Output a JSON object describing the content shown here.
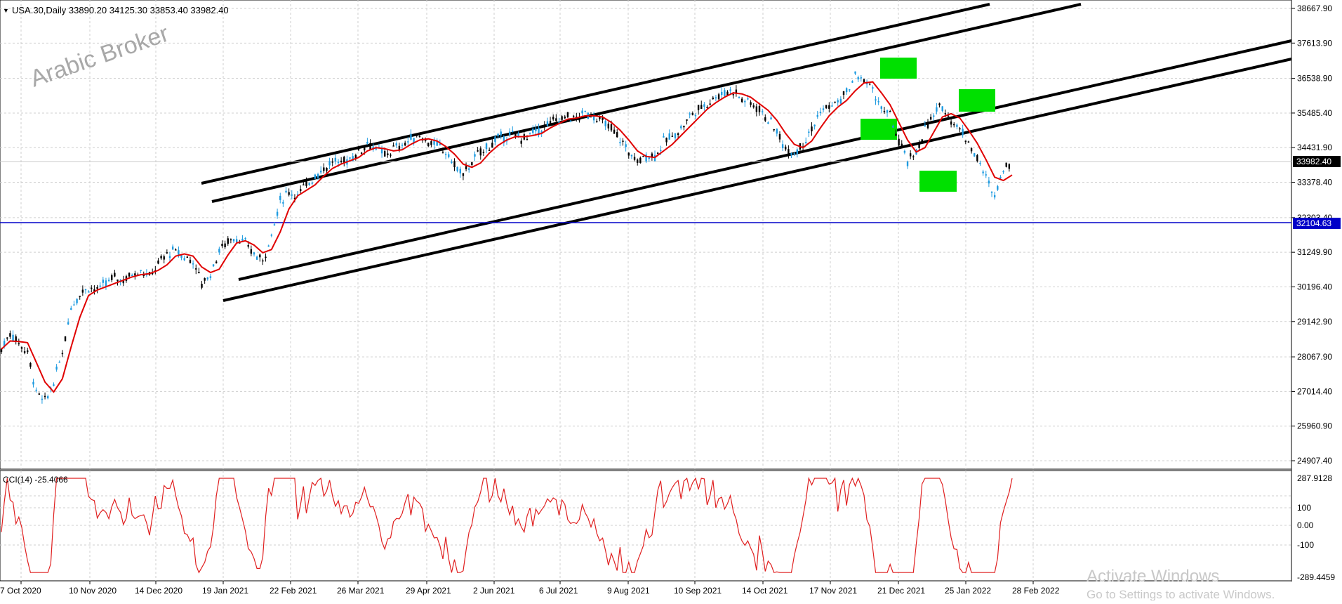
{
  "chart": {
    "symbol_line": "USA.30,Daily  33890.20 34125.30 33853.40 33982.40",
    "watermark": "Arabic Broker",
    "price_labels": [
      "38667.90",
      "37613.90",
      "36538.90",
      "35485.40",
      "34431.90",
      "33378.40",
      "32303.40",
      "31249.90",
      "30196.40",
      "29142.90",
      "28067.90",
      "27014.40",
      "25960.90",
      "24907.40"
    ],
    "current_price": "33982.40",
    "horizontal_line_price": "32104.63",
    "date_labels": [
      "7 Oct 2020",
      "10 Nov 2020",
      "14 Dec 2020",
      "19 Jan 2021",
      "22 Feb 2021",
      "26 Mar 2021",
      "29 Apr 2021",
      "2 Jun 2021",
      "6 Jul 2021",
      "9 Aug 2021",
      "10 Sep 2021",
      "14 Oct 2021",
      "17 Nov 2021",
      "21 Dec 2021",
      "25 Jan 2022",
      "28 Feb 2022"
    ],
    "cci_label": "CCI(14) -25.4066",
    "cci_axis_labels": [
      "287.9128",
      "100",
      "0.00",
      "-100",
      "-289.4459"
    ],
    "colors": {
      "candle": "#1e9be0",
      "candle_dark": "#000000",
      "ma": "#e00000",
      "hline": "#0000c8",
      "box": "#00e000",
      "trend": "#000000",
      "cci": "#e02020",
      "grid": "#c8c8c8"
    },
    "price_series": [
      28300,
      28800,
      28500,
      28200,
      27000,
      26700,
      27300,
      28200,
      29600,
      30000,
      30200,
      30100,
      30300,
      30500,
      30400,
      30600,
      30700,
      30500,
      30900,
      31200,
      31300,
      31100,
      31000,
      30300,
      30600,
      31300,
      31600,
      31700,
      31500,
      31200,
      31000,
      31800,
      32800,
      33100,
      33000,
      33300,
      33600,
      33800,
      34000,
      34000,
      34100,
      34300,
      34600,
      34400,
      34200,
      34400,
      34500,
      34700,
      34800,
      34600,
      34500,
      34300,
      33900,
      33600,
      34000,
      34300,
      34500,
      34700,
      34800,
      34800,
      34700,
      34900,
      35000,
      35200,
      35300,
      35400,
      35300,
      35500,
      35400,
      35200,
      35000,
      34700,
      34300,
      34000,
      34200,
      34200,
      34600,
      34800,
      35000,
      35400,
      35600,
      35800,
      36000,
      36100,
      36200,
      35900,
      35800,
      35600,
      35300,
      34900,
      34400,
      34300,
      34600,
      35000,
      35500,
      35700,
      35800,
      36100,
      36600,
      36500,
      36200,
      35600,
      35400,
      34600,
      34000,
      34300,
      35000,
      35400,
      35700,
      35300,
      35000,
      34600,
      34100,
      33500,
      33000,
      33800,
      34000
    ]
  }
}
